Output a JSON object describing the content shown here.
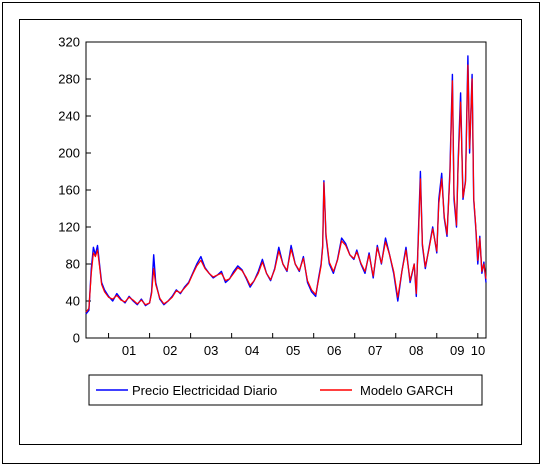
{
  "chart_data": {
    "type": "line",
    "title": "",
    "xlabel": "",
    "ylabel": "",
    "ylim": [
      0,
      320
    ],
    "xlim": [
      2000.45,
      2010.2
    ],
    "y_ticks": [
      0,
      40,
      80,
      120,
      160,
      200,
      240,
      280,
      320
    ],
    "y_tick_labels": [
      "0",
      "40",
      "80",
      "120",
      "160",
      "200",
      "240",
      "280",
      "320"
    ],
    "x_ticks": [
      2001,
      2002,
      2003,
      2004,
      2005,
      2006,
      2007,
      2008,
      2009,
      2010
    ],
    "x_tick_labels": [
      "01",
      "02",
      "03",
      "04",
      "05",
      "06",
      "07",
      "08",
      "09",
      "10"
    ],
    "grid": false,
    "legend_position": "bottom",
    "series": [
      {
        "name": "Precio Electricidad Diario",
        "color": "#0000ff",
        "points": [
          [
            2000.45,
            26
          ],
          [
            2000.52,
            30
          ],
          [
            2000.58,
            75
          ],
          [
            2000.63,
            98
          ],
          [
            2000.68,
            90
          ],
          [
            2000.73,
            100
          ],
          [
            2000.78,
            80
          ],
          [
            2000.83,
            60
          ],
          [
            2000.9,
            52
          ],
          [
            2001.0,
            45
          ],
          [
            2001.1,
            40
          ],
          [
            2001.2,
            48
          ],
          [
            2001.3,
            42
          ],
          [
            2001.4,
            38
          ],
          [
            2001.5,
            45
          ],
          [
            2001.6,
            40
          ],
          [
            2001.7,
            36
          ],
          [
            2001.8,
            42
          ],
          [
            2001.9,
            35
          ],
          [
            2002.0,
            38
          ],
          [
            2002.05,
            50
          ],
          [
            2002.1,
            90
          ],
          [
            2002.15,
            60
          ],
          [
            2002.25,
            42
          ],
          [
            2002.35,
            36
          ],
          [
            2002.45,
            40
          ],
          [
            2002.55,
            45
          ],
          [
            2002.65,
            52
          ],
          [
            2002.75,
            48
          ],
          [
            2002.85,
            55
          ],
          [
            2002.95,
            60
          ],
          [
            2003.05,
            70
          ],
          [
            2003.15,
            80
          ],
          [
            2003.25,
            88
          ],
          [
            2003.35,
            76
          ],
          [
            2003.45,
            70
          ],
          [
            2003.55,
            65
          ],
          [
            2003.65,
            68
          ],
          [
            2003.75,
            72
          ],
          [
            2003.85,
            60
          ],
          [
            2003.95,
            64
          ],
          [
            2004.05,
            72
          ],
          [
            2004.15,
            78
          ],
          [
            2004.25,
            74
          ],
          [
            2004.35,
            65
          ],
          [
            2004.45,
            55
          ],
          [
            2004.55,
            62
          ],
          [
            2004.65,
            72
          ],
          [
            2004.75,
            85
          ],
          [
            2004.85,
            70
          ],
          [
            2004.95,
            62
          ],
          [
            2005.05,
            75
          ],
          [
            2005.15,
            98
          ],
          [
            2005.25,
            80
          ],
          [
            2005.35,
            72
          ],
          [
            2005.45,
            100
          ],
          [
            2005.55,
            80
          ],
          [
            2005.65,
            72
          ],
          [
            2005.75,
            88
          ],
          [
            2005.85,
            60
          ],
          [
            2005.95,
            50
          ],
          [
            2006.05,
            45
          ],
          [
            2006.12,
            65
          ],
          [
            2006.18,
            80
          ],
          [
            2006.22,
            100
          ],
          [
            2006.25,
            170
          ],
          [
            2006.3,
            110
          ],
          [
            2006.38,
            80
          ],
          [
            2006.48,
            70
          ],
          [
            2006.58,
            85
          ],
          [
            2006.68,
            108
          ],
          [
            2006.78,
            102
          ],
          [
            2006.88,
            90
          ],
          [
            2006.98,
            85
          ],
          [
            2007.05,
            95
          ],
          [
            2007.15,
            80
          ],
          [
            2007.25,
            70
          ],
          [
            2007.35,
            92
          ],
          [
            2007.45,
            65
          ],
          [
            2007.55,
            100
          ],
          [
            2007.65,
            80
          ],
          [
            2007.75,
            108
          ],
          [
            2007.85,
            90
          ],
          [
            2007.95,
            70
          ],
          [
            2008.05,
            40
          ],
          [
            2008.15,
            72
          ],
          [
            2008.25,
            98
          ],
          [
            2008.35,
            60
          ],
          [
            2008.45,
            80
          ],
          [
            2008.5,
            45
          ],
          [
            2008.55,
            110
          ],
          [
            2008.6,
            180
          ],
          [
            2008.65,
            100
          ],
          [
            2008.72,
            75
          ],
          [
            2008.8,
            95
          ],
          [
            2008.9,
            120
          ],
          [
            2009.0,
            92
          ],
          [
            2009.05,
            150
          ],
          [
            2009.12,
            178
          ],
          [
            2009.18,
            130
          ],
          [
            2009.25,
            110
          ],
          [
            2009.32,
            180
          ],
          [
            2009.38,
            285
          ],
          [
            2009.42,
            150
          ],
          [
            2009.48,
            120
          ],
          [
            2009.52,
            190
          ],
          [
            2009.58,
            265
          ],
          [
            2009.64,
            150
          ],
          [
            2009.7,
            170
          ],
          [
            2009.76,
            305
          ],
          [
            2009.8,
            200
          ],
          [
            2009.86,
            285
          ],
          [
            2009.9,
            150
          ],
          [
            2009.95,
            120
          ],
          [
            2010.0,
            80
          ],
          [
            2010.05,
            110
          ],
          [
            2010.1,
            70
          ],
          [
            2010.15,
            82
          ],
          [
            2010.2,
            60
          ]
        ]
      },
      {
        "name": "Modelo GARCH",
        "color": "#ff0000",
        "points": [
          [
            2000.45,
            28
          ],
          [
            2000.52,
            32
          ],
          [
            2000.58,
            70
          ],
          [
            2000.63,
            92
          ],
          [
            2000.68,
            88
          ],
          [
            2000.73,
            95
          ],
          [
            2000.78,
            78
          ],
          [
            2000.83,
            58
          ],
          [
            2000.9,
            50
          ],
          [
            2001.0,
            44
          ],
          [
            2001.1,
            42
          ],
          [
            2001.2,
            46
          ],
          [
            2001.3,
            41
          ],
          [
            2001.4,
            39
          ],
          [
            2001.5,
            44
          ],
          [
            2001.6,
            41
          ],
          [
            2001.7,
            37
          ],
          [
            2001.8,
            41
          ],
          [
            2001.9,
            36
          ],
          [
            2002.0,
            38
          ],
          [
            2002.05,
            48
          ],
          [
            2002.1,
            75
          ],
          [
            2002.15,
            58
          ],
          [
            2002.25,
            43
          ],
          [
            2002.35,
            37
          ],
          [
            2002.45,
            40
          ],
          [
            2002.55,
            44
          ],
          [
            2002.65,
            51
          ],
          [
            2002.75,
            49
          ],
          [
            2002.85,
            54
          ],
          [
            2002.95,
            59
          ],
          [
            2003.05,
            69
          ],
          [
            2003.15,
            78
          ],
          [
            2003.25,
            84
          ],
          [
            2003.35,
            75
          ],
          [
            2003.45,
            70
          ],
          [
            2003.55,
            66
          ],
          [
            2003.65,
            68
          ],
          [
            2003.75,
            70
          ],
          [
            2003.85,
            62
          ],
          [
            2003.95,
            64
          ],
          [
            2004.05,
            70
          ],
          [
            2004.15,
            76
          ],
          [
            2004.25,
            73
          ],
          [
            2004.35,
            66
          ],
          [
            2004.45,
            57
          ],
          [
            2004.55,
            62
          ],
          [
            2004.65,
            70
          ],
          [
            2004.75,
            82
          ],
          [
            2004.85,
            70
          ],
          [
            2004.95,
            63
          ],
          [
            2005.05,
            74
          ],
          [
            2005.15,
            94
          ],
          [
            2005.25,
            80
          ],
          [
            2005.35,
            73
          ],
          [
            2005.45,
            96
          ],
          [
            2005.55,
            80
          ],
          [
            2005.65,
            73
          ],
          [
            2005.75,
            86
          ],
          [
            2005.85,
            62
          ],
          [
            2005.95,
            52
          ],
          [
            2006.05,
            47
          ],
          [
            2006.12,
            63
          ],
          [
            2006.18,
            78
          ],
          [
            2006.22,
            98
          ],
          [
            2006.25,
            168
          ],
          [
            2006.3,
            112
          ],
          [
            2006.38,
            82
          ],
          [
            2006.48,
            72
          ],
          [
            2006.58,
            84
          ],
          [
            2006.68,
            105
          ],
          [
            2006.78,
            100
          ],
          [
            2006.88,
            90
          ],
          [
            2006.98,
            86
          ],
          [
            2007.05,
            93
          ],
          [
            2007.15,
            81
          ],
          [
            2007.25,
            72
          ],
          [
            2007.35,
            90
          ],
          [
            2007.45,
            67
          ],
          [
            2007.55,
            98
          ],
          [
            2007.65,
            81
          ],
          [
            2007.75,
            104
          ],
          [
            2007.85,
            90
          ],
          [
            2007.95,
            72
          ],
          [
            2008.05,
            44
          ],
          [
            2008.15,
            72
          ],
          [
            2008.25,
            95
          ],
          [
            2008.35,
            62
          ],
          [
            2008.45,
            80
          ],
          [
            2008.5,
            48
          ],
          [
            2008.55,
            105
          ],
          [
            2008.6,
            172
          ],
          [
            2008.65,
            102
          ],
          [
            2008.72,
            77
          ],
          [
            2008.8,
            94
          ],
          [
            2008.9,
            118
          ],
          [
            2009.0,
            94
          ],
          [
            2009.05,
            145
          ],
          [
            2009.12,
            172
          ],
          [
            2009.18,
            132
          ],
          [
            2009.25,
            112
          ],
          [
            2009.32,
            175
          ],
          [
            2009.38,
            278
          ],
          [
            2009.42,
            155
          ],
          [
            2009.48,
            122
          ],
          [
            2009.52,
            185
          ],
          [
            2009.58,
            255
          ],
          [
            2009.64,
            152
          ],
          [
            2009.7,
            168
          ],
          [
            2009.76,
            295
          ],
          [
            2009.8,
            205
          ],
          [
            2009.86,
            280
          ],
          [
            2009.9,
            152
          ],
          [
            2009.95,
            122
          ],
          [
            2010.0,
            84
          ],
          [
            2010.05,
            108
          ],
          [
            2010.1,
            72
          ],
          [
            2010.15,
            80
          ],
          [
            2010.2,
            64
          ]
        ]
      }
    ]
  }
}
